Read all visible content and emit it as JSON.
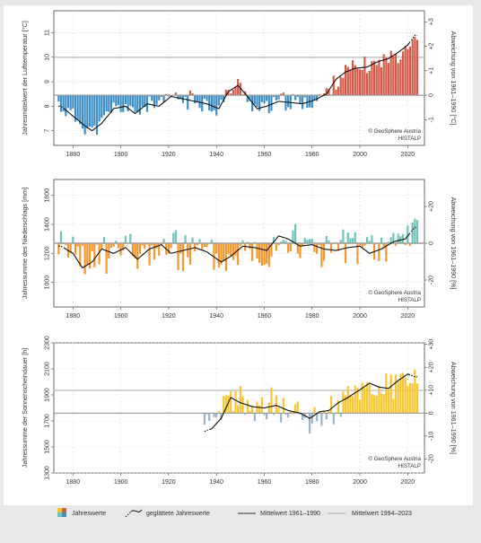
{
  "legend": {
    "annual": "Jahreswerte",
    "smoothed": "geglättete Jahreswerte",
    "mean_ref": "Mittelwert 1961–1990",
    "mean_recent": "Mittelwert 1994–2023"
  },
  "colors": {
    "temp_pos": "#d45a45",
    "temp_neg": "#3f8fc4",
    "prec_pos": "#6dc3b8",
    "prec_neg": "#f2962e",
    "sun_pos": "#f6c530",
    "sun_neg": "#9bb3c6",
    "ref_line": "#b8b8b8",
    "recent_line": "#c8c8c8"
  },
  "chart_data": [
    {
      "type": "bar",
      "name": "temperature",
      "ylabel": "Jahresmittelwert der Lufttemperatur [°C]",
      "y2label": "Abweichung von 1961–1990 [°C]",
      "credit": [
        "© GeoSphere Austria",
        "HISTALP"
      ],
      "xlim": [
        1872,
        2027
      ],
      "ylim": [
        6.4,
        11.9
      ],
      "xticks": [
        "1880",
        "1900",
        "1920",
        "1940",
        "1960",
        "1980",
        "2000",
        "2020"
      ],
      "yticks": [
        "7",
        "8",
        "9",
        "10",
        "11"
      ],
      "y2ticks": [
        "-1",
        "0",
        "+1",
        "+2",
        "+3"
      ],
      "baseline": 8.45,
      "recent_mean": 10.0,
      "recent_range": [
        1994,
        2023
      ],
      "anchors": [
        [
          1875,
          8.0
        ],
        [
          1880,
          7.6
        ],
        [
          1885,
          7.2
        ],
        [
          1888,
          7.0
        ],
        [
          1892,
          7.3
        ],
        [
          1897,
          7.9
        ],
        [
          1902,
          8.0
        ],
        [
          1906,
          7.7
        ],
        [
          1911,
          8.1
        ],
        [
          1916,
          8.0
        ],
        [
          1921,
          8.4
        ],
        [
          1926,
          8.3
        ],
        [
          1931,
          8.2
        ],
        [
          1936,
          8.1
        ],
        [
          1941,
          7.9
        ],
        [
          1945,
          8.6
        ],
        [
          1949,
          8.85
        ],
        [
          1953,
          8.4
        ],
        [
          1957,
          7.9
        ],
        [
          1961,
          8.0
        ],
        [
          1966,
          8.2
        ],
        [
          1971,
          8.15
        ],
        [
          1976,
          8.1
        ],
        [
          1981,
          8.25
        ],
        [
          1986,
          8.5
        ],
        [
          1990,
          9.1
        ],
        [
          1994,
          9.4
        ],
        [
          1998,
          9.55
        ],
        [
          2003,
          9.6
        ],
        [
          2007,
          9.8
        ],
        [
          2012,
          9.95
        ],
        [
          2016,
          10.2
        ],
        [
          2020,
          10.5
        ],
        [
          2023,
          10.9
        ]
      ],
      "noise_amp": 0.45,
      "seed": 11,
      "smooth_start": 1876,
      "smooth_end": 2021
    },
    {
      "type": "bar",
      "name": "precipitation",
      "ylabel": "Jahressumme des Niederschlags [mm]",
      "y2label": "Abweichung von 1961–1990 [%]",
      "credit": [
        "© GeoSphere Austria",
        "HISTALP"
      ],
      "xlim": [
        1872,
        2027
      ],
      "ylim": [
        830,
        1710
      ],
      "xticks": [
        "1880",
        "1900",
        "1920",
        "1940",
        "1960",
        "1980",
        "2000",
        "2020"
      ],
      "yticks": [
        "800",
        "1000",
        "1200",
        "1400",
        "1600"
      ],
      "y2ticks": [
        "-20",
        "0",
        "+20"
      ],
      "baseline": 1270,
      "recent_mean": 1270,
      "recent_range": [
        1994,
        2023
      ],
      "anchors": [
        [
          1875,
          1250
        ],
        [
          1880,
          1200
        ],
        [
          1884,
          1100
        ],
        [
          1888,
          1140
        ],
        [
          1892,
          1230
        ],
        [
          1897,
          1200
        ],
        [
          1902,
          1240
        ],
        [
          1907,
          1160
        ],
        [
          1912,
          1230
        ],
        [
          1917,
          1260
        ],
        [
          1921,
          1200
        ],
        [
          1926,
          1220
        ],
        [
          1931,
          1240
        ],
        [
          1936,
          1210
        ],
        [
          1942,
          1140
        ],
        [
          1946,
          1180
        ],
        [
          1951,
          1250
        ],
        [
          1956,
          1240
        ],
        [
          1961,
          1220
        ],
        [
          1966,
          1320
        ],
        [
          1970,
          1300
        ],
        [
          1975,
          1250
        ],
        [
          1980,
          1260
        ],
        [
          1985,
          1230
        ],
        [
          1990,
          1220
        ],
        [
          1995,
          1240
        ],
        [
          2000,
          1250
        ],
        [
          2004,
          1200
        ],
        [
          2009,
          1230
        ],
        [
          2014,
          1280
        ],
        [
          2019,
          1300
        ],
        [
          2023,
          1380
        ]
      ],
      "noise_amp": 170,
      "seed": 23,
      "smooth_start": 1876,
      "smooth_end": 2021
    },
    {
      "type": "bar",
      "name": "sunshine",
      "ylabel": "Jahressumme der Sonnenscheindauer [h]",
      "y2label": "Abweichung von 1961–1990 [%]",
      "credit": [
        "© GeoSphere Austria",
        "HISTALP"
      ],
      "xlim": [
        1872,
        2027
      ],
      "ylim": [
        1300,
        2300
      ],
      "xticks": [
        "1880",
        "1900",
        "1920",
        "1940",
        "1960",
        "1980",
        "2000",
        "2020"
      ],
      "yticks": [
        "1300",
        "1500",
        "1700",
        "1900",
        "2100",
        "2300"
      ],
      "y2ticks": [
        "-20",
        "-10",
        "0",
        "+10",
        "+20",
        "+30"
      ],
      "baseline": 1760,
      "recent_mean": 1935,
      "recent_range": [
        1994,
        2023
      ],
      "start_year": 1935,
      "anchors": [
        [
          1935,
          1620
        ],
        [
          1938,
          1640
        ],
        [
          1942,
          1720
        ],
        [
          1946,
          1880
        ],
        [
          1950,
          1840
        ],
        [
          1955,
          1810
        ],
        [
          1960,
          1800
        ],
        [
          1965,
          1820
        ],
        [
          1970,
          1780
        ],
        [
          1975,
          1760
        ],
        [
          1979,
          1720
        ],
        [
          1983,
          1770
        ],
        [
          1987,
          1780
        ],
        [
          1991,
          1840
        ],
        [
          1995,
          1880
        ],
        [
          2000,
          1940
        ],
        [
          2004,
          1990
        ],
        [
          2008,
          1960
        ],
        [
          2012,
          1950
        ],
        [
          2016,
          2010
        ],
        [
          2020,
          2060
        ],
        [
          2023,
          2040
        ]
      ],
      "noise_amp": 150,
      "seed": 37,
      "smooth_start": 1937,
      "smooth_end": 2021
    }
  ]
}
